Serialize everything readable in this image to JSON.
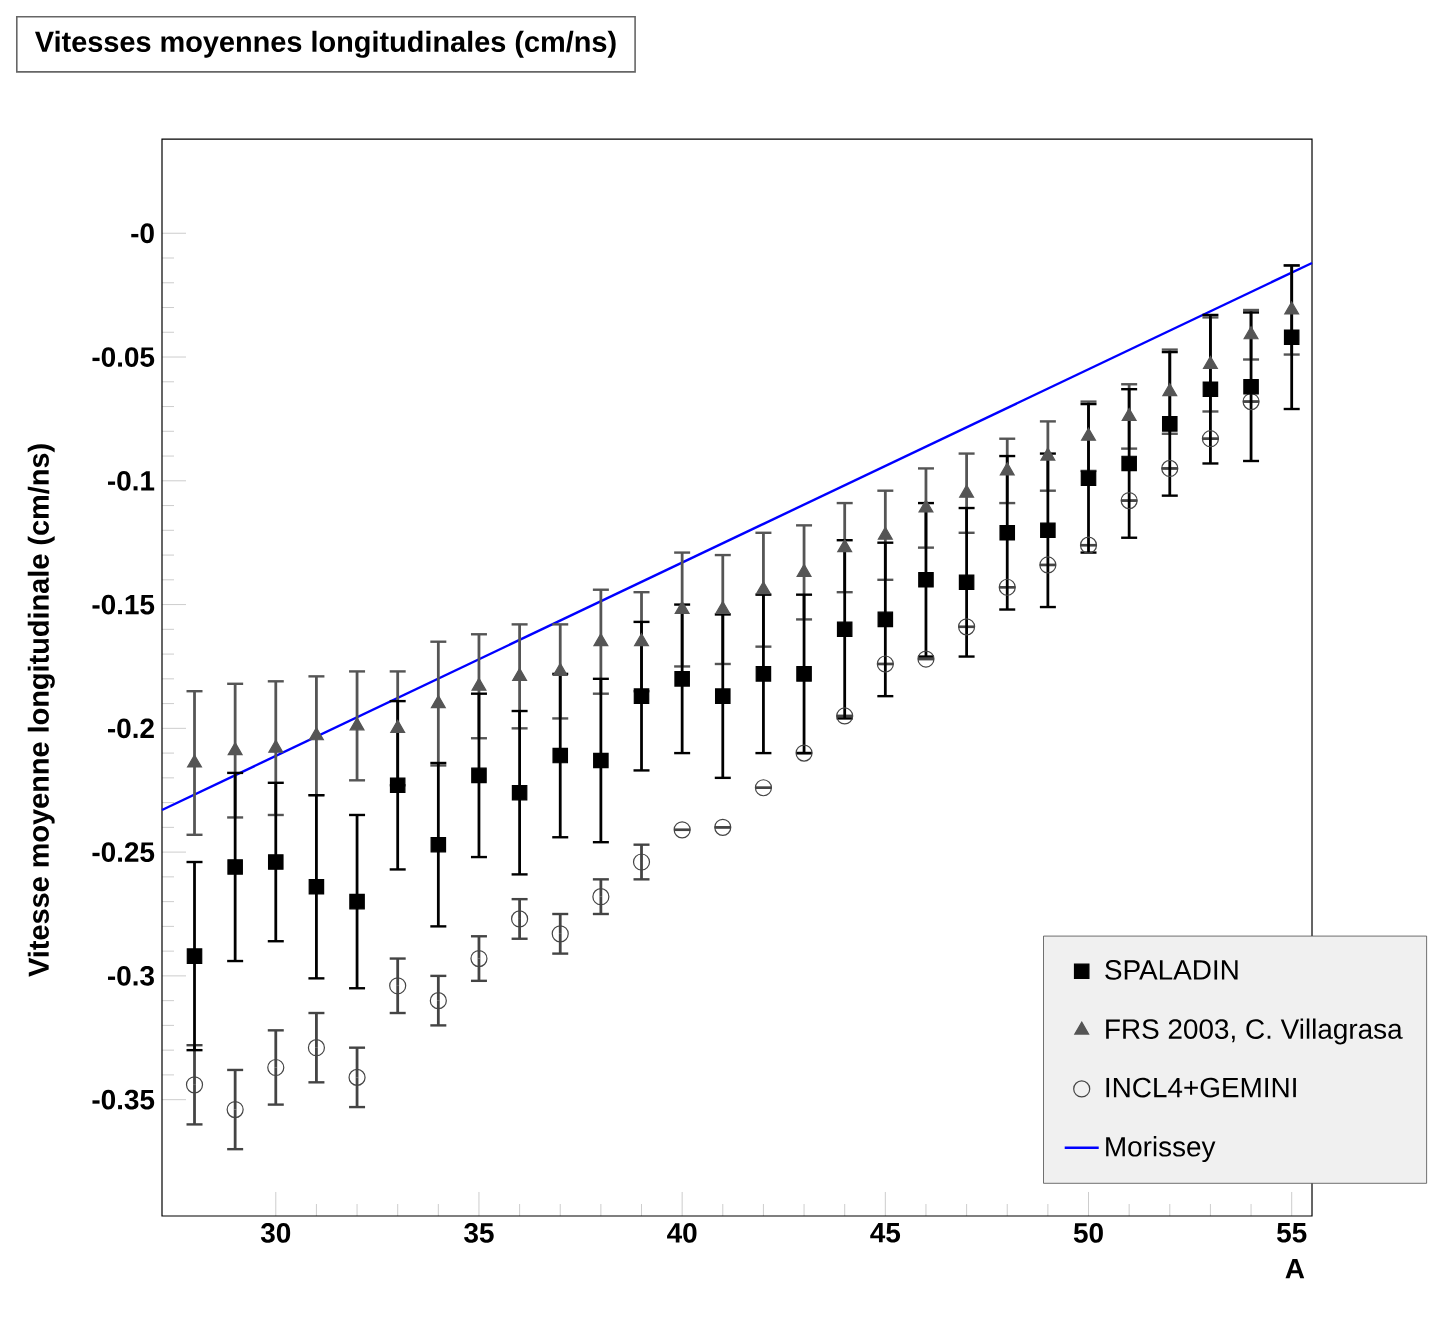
{
  "chart_data": {
    "type": "scatter",
    "title": "Vitesses moyennes longitudinales (cm/ns)",
    "xlabel": "A",
    "ylabel": "Vitesse moyenne longitudinale (cm/ns)",
    "x": [
      28,
      29,
      30,
      31,
      32,
      33,
      34,
      35,
      36,
      37,
      38,
      39,
      40,
      41,
      42,
      43,
      44,
      45,
      46,
      47,
      48,
      49,
      50,
      51,
      52,
      53,
      54,
      55
    ],
    "xlim": [
      27.2,
      55.5
    ],
    "ylim": [
      -0.397,
      0.038
    ],
    "xticks": [
      30,
      35,
      40,
      45,
      50,
      55
    ],
    "yticks": [
      {
        "value": 0,
        "label": "-0"
      },
      -0.05,
      -0.1,
      -0.15,
      -0.2,
      -0.25,
      -0.3,
      -0.35
    ],
    "legend": "bottom right",
    "grid": false,
    "series": [
      {
        "name": "SPALADIN",
        "type": "scatter",
        "marker": "square",
        "color": "#000000",
        "values": [
          -0.292,
          -0.256,
          -0.254,
          -0.264,
          -0.27,
          -0.223,
          -0.247,
          -0.219,
          -0.226,
          -0.211,
          -0.213,
          -0.187,
          -0.18,
          -0.187,
          -0.178,
          -0.178,
          -0.16,
          -0.156,
          -0.14,
          -0.141,
          -0.121,
          -0.12,
          -0.099,
          -0.093,
          -0.077,
          -0.063,
          -0.062,
          -0.042
        ],
        "errors": [
          0.038,
          0.038,
          0.032,
          0.037,
          0.035,
          0.034,
          0.033,
          0.033,
          0.033,
          0.033,
          0.033,
          0.03,
          0.03,
          0.033,
          0.032,
          0.032,
          0.036,
          0.031,
          0.031,
          0.03,
          0.031,
          0.031,
          0.03,
          0.03,
          0.029,
          0.03,
          0.03,
          0.029
        ]
      },
      {
        "name": "FRS 2003, C. Villagrasa",
        "type": "scatter",
        "marker": "triangle",
        "color": "#555555",
        "values": [
          -0.214,
          -0.209,
          -0.208,
          -0.203,
          -0.199,
          -0.2,
          -0.19,
          -0.183,
          -0.179,
          -0.177,
          -0.165,
          -0.165,
          -0.152,
          -0.152,
          -0.144,
          -0.137,
          -0.127,
          -0.122,
          -0.111,
          -0.105,
          -0.096,
          -0.09,
          -0.082,
          -0.074,
          -0.064,
          -0.053,
          -0.041,
          -0.031
        ],
        "errors": [
          0.029,
          0.027,
          0.027,
          0.024,
          0.022,
          0.023,
          0.025,
          0.021,
          0.021,
          0.019,
          0.021,
          0.02,
          0.023,
          0.022,
          0.023,
          0.019,
          0.018,
          0.018,
          0.016,
          0.016,
          0.013,
          0.014,
          0.014,
          0.013,
          0.017,
          0.019,
          0.01,
          0.018
        ]
      },
      {
        "name": "INCL4+GEMINI",
        "type": "scatter",
        "marker": "circle",
        "color": "#444444",
        "values": [
          -0.344,
          -0.354,
          -0.337,
          -0.329,
          -0.341,
          -0.304,
          -0.31,
          -0.293,
          -0.277,
          -0.283,
          -0.268,
          -0.254,
          -0.241,
          -0.24,
          -0.224,
          -0.21,
          -0.195,
          -0.174,
          -0.172,
          -0.159,
          -0.143,
          -0.134,
          -0.126,
          -0.108,
          -0.095,
          -0.083,
          -0.068,
          null
        ],
        "errors": [
          0.016,
          0.016,
          0.015,
          0.014,
          0.012,
          0.011,
          0.01,
          0.009,
          0.008,
          0.008,
          0.007,
          0.007,
          null,
          null,
          null,
          null,
          null,
          null,
          null,
          null,
          null,
          null,
          null,
          null,
          null,
          null,
          null,
          null
        ]
      },
      {
        "name": "Morissey",
        "type": "line",
        "marker": "none",
        "color": "#0000ff",
        "x": [
          27.2,
          55.5
        ],
        "values": [
          -0.233,
          -0.012
        ]
      }
    ]
  }
}
